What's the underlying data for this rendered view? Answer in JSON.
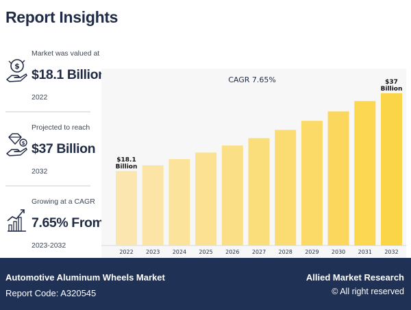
{
  "page_title": "Report Insights",
  "stats": [
    {
      "label": "Market was valued at",
      "value": "$18.1 Billion",
      "year": "2022",
      "icon": "money-hand-icon"
    },
    {
      "label": "Projected to reach",
      "value": "$37 Billion",
      "year": "2032",
      "icon": "diamond-hand-icon"
    },
    {
      "label": "Growing at a CAGR",
      "value": "7.65% From",
      "year": "2023-2032",
      "icon": "growth-chart-icon"
    }
  ],
  "footer": {
    "market_name": "Automotive Aluminum Wheels Market",
    "report_code": "Report Code: A320545",
    "brand": "Allied Market Research",
    "rights": "© All right reserved"
  },
  "colors": {
    "footer_bg": "#1f3155",
    "title_text": "#1f2a44",
    "bar_start": "#fbe6b0",
    "bar_end": "#fbd548"
  },
  "chart_data": {
    "type": "bar",
    "title": "CAGR 7.65%",
    "categories": [
      "2022",
      "2023",
      "2024",
      "2025",
      "2026",
      "2027",
      "2028",
      "2029",
      "2030",
      "2031",
      "2032"
    ],
    "values": [
      18.1,
      19.5,
      21.0,
      22.6,
      24.3,
      26.1,
      28.1,
      30.3,
      32.6,
      35.1,
      37.0
    ],
    "data_labels": [
      {
        "index": 0,
        "lines": [
          "$18.1",
          "Billion"
        ]
      },
      {
        "index": 10,
        "lines": [
          "$37",
          "Billion"
        ]
      }
    ],
    "xlabel": "",
    "ylabel": "",
    "ylim": [
      0,
      40
    ],
    "grid": false,
    "legend": "none"
  }
}
